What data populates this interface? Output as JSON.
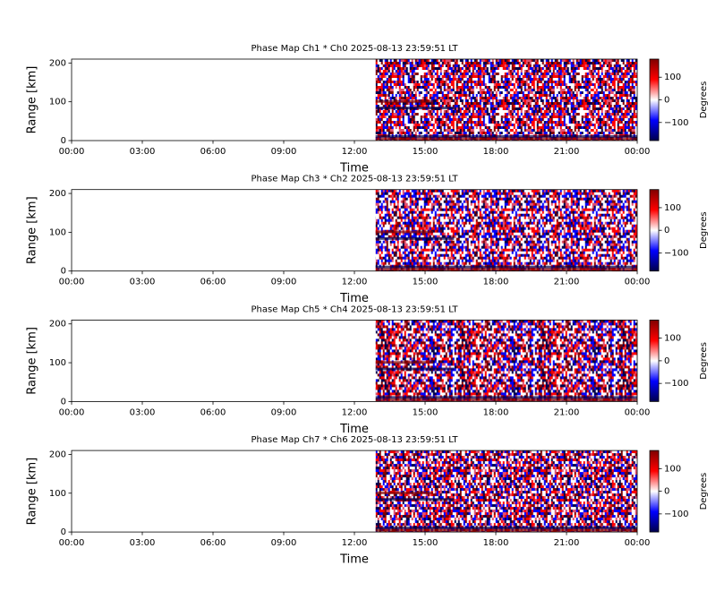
{
  "chart_data": [
    {
      "type": "heatmap",
      "title": "Phase Map Ch1 * Ch0 2025-08-13 23:59:51 LT",
      "xlabel": "Time",
      "ylabel": "Range [km]",
      "colormap": [
        "#00004c",
        "#0000ff",
        "#ffffff",
        "#ff0000",
        "#800000"
      ],
      "data_xrange": [
        12.9,
        24
      ],
      "xlim": [
        0,
        24
      ],
      "xticks": [
        {
          "value": 0,
          "label": "00:00"
        },
        {
          "value": 3,
          "label": "03:00"
        },
        {
          "value": 6,
          "label": "06:00"
        },
        {
          "value": 9,
          "label": "09:00"
        },
        {
          "value": 12,
          "label": "12:00"
        },
        {
          "value": 15,
          "label": "15:00"
        },
        {
          "value": 18,
          "label": "18:00"
        },
        {
          "value": 21,
          "label": "21:00"
        },
        {
          "value": 24,
          "label": "00:00"
        }
      ],
      "ylim": [
        0,
        210
      ],
      "yticks": [
        0,
        100,
        200
      ],
      "colorbar": {
        "label": "Degrees",
        "clim": [
          -180,
          180
        ],
        "ticks": [
          {
            "value": -100,
            "label": "−100"
          },
          0,
          100
        ]
      }
    },
    {
      "type": "heatmap",
      "title": "Phase Map Ch3 * Ch2 2025-08-13 23:59:51 LT",
      "xlabel": "Time",
      "ylabel": "Range [km]",
      "colormap": [
        "#00004c",
        "#0000ff",
        "#ffffff",
        "#ff0000",
        "#800000"
      ],
      "data_xrange": [
        12.9,
        24
      ],
      "xlim": [
        0,
        24
      ],
      "xticks": [
        {
          "value": 0,
          "label": "00:00"
        },
        {
          "value": 3,
          "label": "03:00"
        },
        {
          "value": 6,
          "label": "06:00"
        },
        {
          "value": 9,
          "label": "09:00"
        },
        {
          "value": 12,
          "label": "12:00"
        },
        {
          "value": 15,
          "label": "15:00"
        },
        {
          "value": 18,
          "label": "18:00"
        },
        {
          "value": 21,
          "label": "21:00"
        },
        {
          "value": 24,
          "label": "00:00"
        }
      ],
      "ylim": [
        0,
        210
      ],
      "yticks": [
        0,
        100,
        200
      ],
      "colorbar": {
        "label": "Degrees",
        "clim": [
          -180,
          180
        ],
        "ticks": [
          {
            "value": -100,
            "label": "−100"
          },
          0,
          100
        ]
      }
    },
    {
      "type": "heatmap",
      "title": "Phase Map Ch5 * Ch4 2025-08-13 23:59:51 LT",
      "xlabel": "Time",
      "ylabel": "Range [km]",
      "colormap": [
        "#00004c",
        "#0000ff",
        "#ffffff",
        "#ff0000",
        "#800000"
      ],
      "data_xrange": [
        12.9,
        24
      ],
      "xlim": [
        0,
        24
      ],
      "xticks": [
        {
          "value": 0,
          "label": "00:00"
        },
        {
          "value": 3,
          "label": "03:00"
        },
        {
          "value": 6,
          "label": "06:00"
        },
        {
          "value": 9,
          "label": "09:00"
        },
        {
          "value": 12,
          "label": "12:00"
        },
        {
          "value": 15,
          "label": "15:00"
        },
        {
          "value": 18,
          "label": "18:00"
        },
        {
          "value": 21,
          "label": "21:00"
        },
        {
          "value": 24,
          "label": "00:00"
        }
      ],
      "ylim": [
        0,
        210
      ],
      "yticks": [
        0,
        100,
        200
      ],
      "colorbar": {
        "label": "Degrees",
        "clim": [
          -180,
          180
        ],
        "ticks": [
          {
            "value": -100,
            "label": "−100"
          },
          0,
          100
        ]
      }
    },
    {
      "type": "heatmap",
      "title": "Phase Map Ch7 * Ch6 2025-08-13 23:59:51 LT",
      "xlabel": "Time",
      "ylabel": "Range [km]",
      "colormap": [
        "#00004c",
        "#0000ff",
        "#ffffff",
        "#ff0000",
        "#800000"
      ],
      "data_xrange": [
        12.9,
        24
      ],
      "xlim": [
        0,
        24
      ],
      "xticks": [
        {
          "value": 0,
          "label": "00:00"
        },
        {
          "value": 3,
          "label": "03:00"
        },
        {
          "value": 6,
          "label": "06:00"
        },
        {
          "value": 9,
          "label": "09:00"
        },
        {
          "value": 12,
          "label": "12:00"
        },
        {
          "value": 15,
          "label": "15:00"
        },
        {
          "value": 18,
          "label": "18:00"
        },
        {
          "value": 21,
          "label": "21:00"
        },
        {
          "value": 24,
          "label": "00:00"
        }
      ],
      "ylim": [
        0,
        210
      ],
      "yticks": [
        0,
        100,
        200
      ],
      "colorbar": {
        "label": "Degrees",
        "clim": [
          -180,
          180
        ],
        "ticks": [
          {
            "value": -100,
            "label": "−100"
          },
          0,
          100
        ]
      }
    }
  ]
}
